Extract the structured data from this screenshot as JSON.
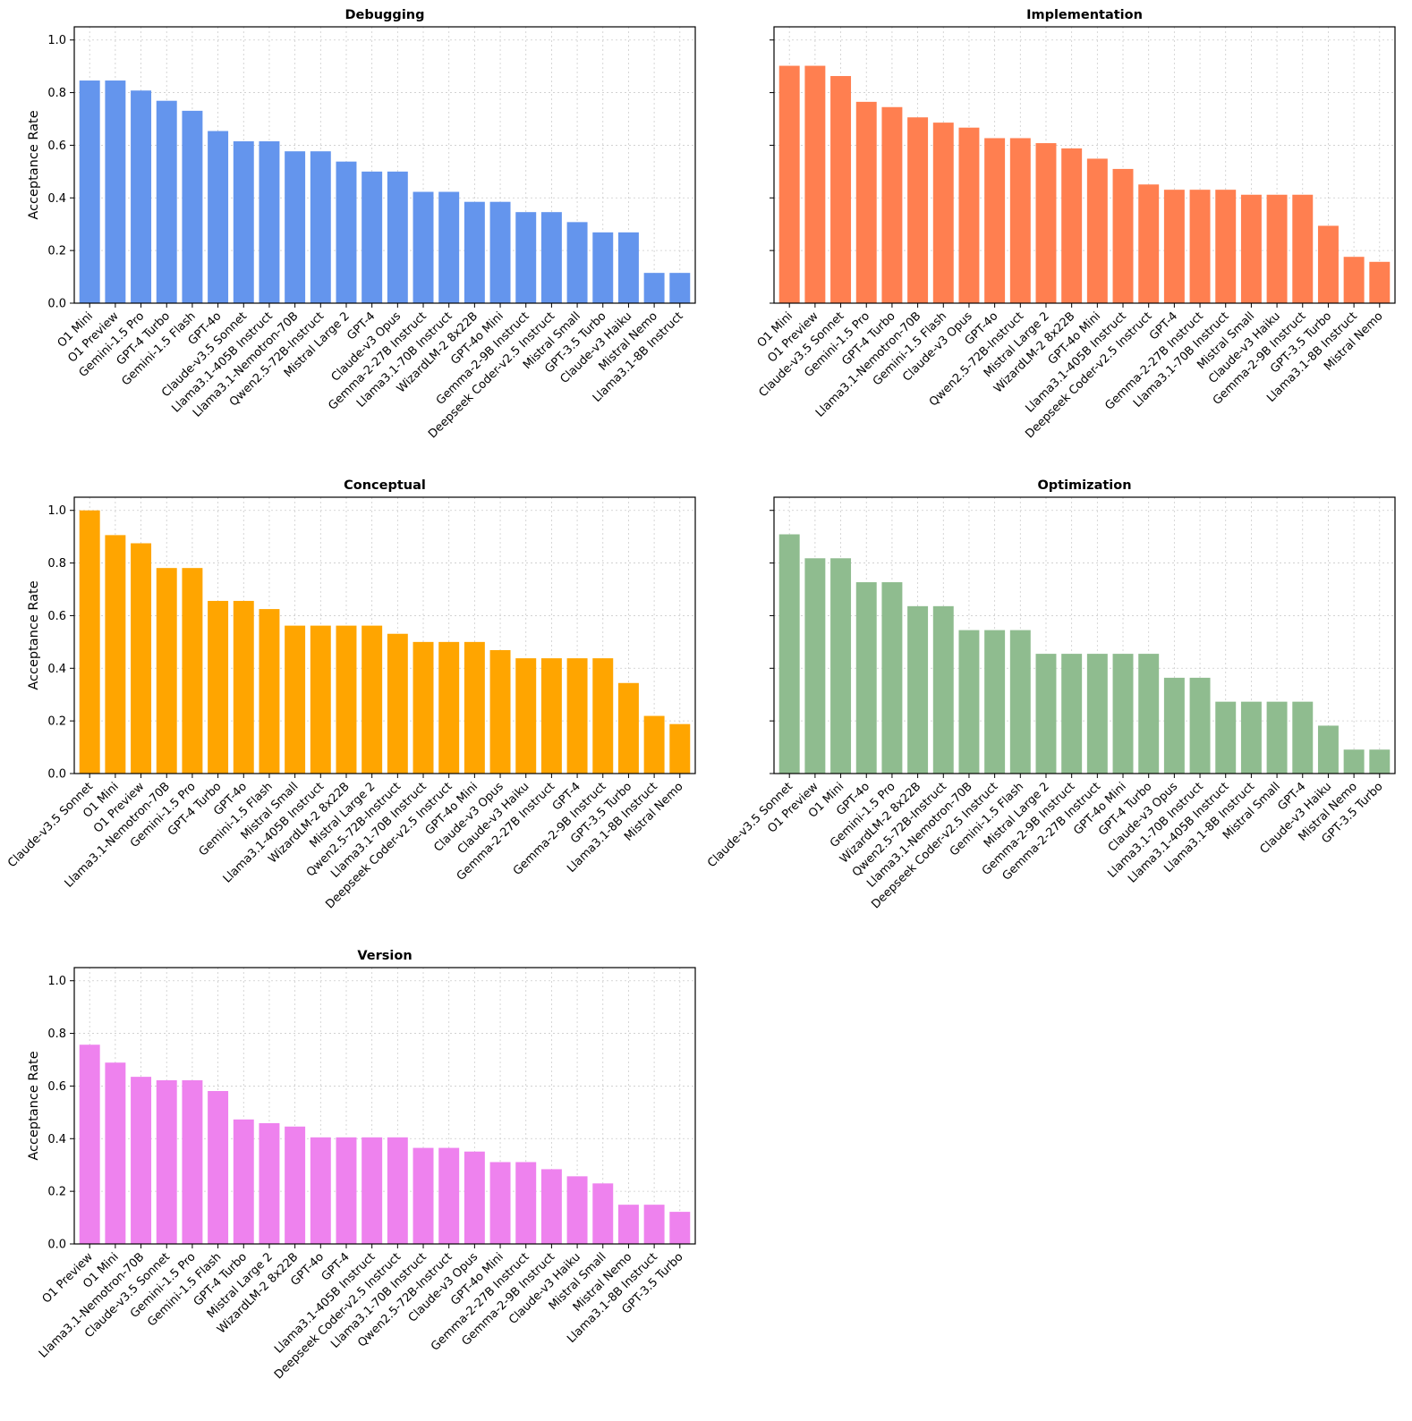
{
  "chart_data": [
    {
      "type": "bar",
      "title": "Debugging",
      "ylabel": "Acceptance Rate",
      "show_ylabel": true,
      "show_yticklabels": true,
      "ylim": [
        0,
        1.05
      ],
      "yticks": [
        "0.0",
        "0.2",
        "0.4",
        "0.6",
        "0.8",
        "1.0"
      ],
      "grid": true,
      "color": "#6495ED",
      "categories": [
        "O1 Mini",
        "O1 Preview",
        "Gemini-1.5 Pro",
        "GPT-4 Turbo",
        "Gemini-1.5 Flash",
        "GPT-4o",
        "Claude-v3.5 Sonnet",
        "Llama3.1-405B Instruct",
        "Llama3.1-Nemotron-70B",
        "Qwen2.5-72B-Instruct",
        "Mistral Large 2",
        "GPT-4",
        "Claude-v3 Opus",
        "Gemma-2-27B Instruct",
        "Llama3.1-70B Instruct",
        "WizardLM-2 8x22B",
        "GPT-4o Mini",
        "Gemma-2-9B Instruct",
        "Deepseek Coder-v2.5 Instruct",
        "Mistral Small",
        "GPT-3.5 Turbo",
        "Claude-v3 Haiku",
        "Mistral Nemo",
        "Llama3.1-8B Instruct"
      ],
      "values": [
        0.846,
        0.846,
        0.808,
        0.769,
        0.731,
        0.654,
        0.615,
        0.615,
        0.577,
        0.577,
        0.538,
        0.5,
        0.5,
        0.423,
        0.423,
        0.385,
        0.385,
        0.346,
        0.346,
        0.308,
        0.269,
        0.269,
        0.115,
        0.115
      ]
    },
    {
      "type": "bar",
      "title": "Implementation",
      "ylabel": "",
      "show_ylabel": false,
      "show_yticklabels": false,
      "ylim": [
        0,
        1.05
      ],
      "yticks": [
        "0.0",
        "0.2",
        "0.4",
        "0.6",
        "0.8",
        "1.0"
      ],
      "grid": true,
      "color": "#FF7F50",
      "categories": [
        "O1 Mini",
        "O1 Preview",
        "Claude-v3.5 Sonnet",
        "Gemini-1.5 Pro",
        "GPT-4 Turbo",
        "Llama3.1-Nemotron-70B",
        "Gemini-1.5 Flash",
        "Claude-v3 Opus",
        "GPT-4o",
        "Qwen2.5-72B-Instruct",
        "Mistral Large 2",
        "WizardLM-2 8x22B",
        "GPT-4o Mini",
        "Llama3.1-405B Instruct",
        "Deepseek Coder-v2.5 Instruct",
        "GPT-4",
        "Gemma-2-27B Instruct",
        "Llama3.1-70B Instruct",
        "Mistral Small",
        "Claude-v3 Haiku",
        "Gemma-2-9B Instruct",
        "GPT-3.5 Turbo",
        "Llama3.1-8B Instruct",
        "Mistral Nemo"
      ],
      "values": [
        0.902,
        0.902,
        0.863,
        0.765,
        0.745,
        0.706,
        0.686,
        0.667,
        0.627,
        0.627,
        0.608,
        0.588,
        0.549,
        0.51,
        0.451,
        0.431,
        0.431,
        0.431,
        0.412,
        0.412,
        0.412,
        0.294,
        0.176,
        0.157
      ]
    },
    {
      "type": "bar",
      "title": "Conceptual",
      "ylabel": "Acceptance Rate",
      "show_ylabel": true,
      "show_yticklabels": true,
      "ylim": [
        0,
        1.05
      ],
      "yticks": [
        "0.0",
        "0.2",
        "0.4",
        "0.6",
        "0.8",
        "1.0"
      ],
      "grid": true,
      "color": "#FFA500",
      "categories": [
        "Claude-v3.5 Sonnet",
        "O1 Mini",
        "O1 Preview",
        "Llama3.1-Nemotron-70B",
        "Gemini-1.5 Pro",
        "GPT-4 Turbo",
        "GPT-4o",
        "Gemini-1.5 Flash",
        "Mistral Small",
        "Llama3.1-405B Instruct",
        "WizardLM-2 8x22B",
        "Mistral Large 2",
        "Qwen2.5-72B-Instruct",
        "Llama3.1-70B Instruct",
        "Deepseek Coder-v2.5 Instruct",
        "GPT-4o Mini",
        "Claude-v3 Opus",
        "Claude-v3 Haiku",
        "Gemma-2-27B Instruct",
        "GPT-4",
        "Gemma-2-9B Instruct",
        "GPT-3.5 Turbo",
        "Llama3.1-8B Instruct",
        "Mistral Nemo"
      ],
      "values": [
        1.0,
        0.906,
        0.875,
        0.781,
        0.781,
        0.656,
        0.656,
        0.625,
        0.562,
        0.562,
        0.562,
        0.562,
        0.531,
        0.5,
        0.5,
        0.5,
        0.469,
        0.438,
        0.438,
        0.438,
        0.438,
        0.344,
        0.219,
        0.188
      ]
    },
    {
      "type": "bar",
      "title": "Optimization",
      "ylabel": "",
      "show_ylabel": false,
      "show_yticklabels": false,
      "ylim": [
        0,
        1.05
      ],
      "yticks": [
        "0.0",
        "0.2",
        "0.4",
        "0.6",
        "0.8",
        "1.0"
      ],
      "grid": true,
      "color": "#8FBC8F",
      "categories": [
        "Claude-v3.5 Sonnet",
        "O1 Preview",
        "O1 Mini",
        "GPT-4o",
        "Gemini-1.5 Pro",
        "WizardLM-2 8x22B",
        "Qwen2.5-72B-Instruct",
        "Llama3.1-Nemotron-70B",
        "Deepseek Coder-v2.5 Instruct",
        "Gemini-1.5 Flash",
        "Mistral Large 2",
        "Gemma-2-9B Instruct",
        "Gemma-2-27B Instruct",
        "GPT-4o Mini",
        "GPT-4 Turbo",
        "Claude-v3 Opus",
        "Llama3.1-70B Instruct",
        "Llama3.1-405B Instruct",
        "Llama3.1-8B Instruct",
        "Mistral Small",
        "GPT-4",
        "Claude-v3 Haiku",
        "Mistral Nemo",
        "GPT-3.5 Turbo"
      ],
      "values": [
        0.909,
        0.818,
        0.818,
        0.727,
        0.727,
        0.636,
        0.636,
        0.545,
        0.545,
        0.545,
        0.455,
        0.455,
        0.455,
        0.455,
        0.455,
        0.364,
        0.364,
        0.273,
        0.273,
        0.273,
        0.273,
        0.182,
        0.091,
        0.091
      ]
    },
    {
      "type": "bar",
      "title": "Version",
      "ylabel": "Acceptance Rate",
      "show_ylabel": true,
      "show_yticklabels": true,
      "ylim": [
        0,
        1.05
      ],
      "yticks": [
        "0.0",
        "0.2",
        "0.4",
        "0.6",
        "0.8",
        "1.0"
      ],
      "grid": true,
      "color": "#EE82EE",
      "categories": [
        "O1 Preview",
        "O1 Mini",
        "Llama3.1-Nemotron-70B",
        "Claude-v3.5 Sonnet",
        "Gemini-1.5 Pro",
        "Gemini-1.5 Flash",
        "GPT-4 Turbo",
        "Mistral Large 2",
        "WizardLM-2 8x22B",
        "GPT-4o",
        "GPT-4",
        "Llama3.1-405B Instruct",
        "Deepseek Coder-v2.5 Instruct",
        "Llama3.1-70B Instruct",
        "Qwen2.5-72B-Instruct",
        "Claude-v3 Opus",
        "GPT-4o Mini",
        "Gemma-2-27B Instruct",
        "Gemma-2-9B Instruct",
        "Claude-v3 Haiku",
        "Mistral Small",
        "Mistral Nemo",
        "Llama3.1-8B Instruct",
        "GPT-3.5 Turbo"
      ],
      "values": [
        0.757,
        0.689,
        0.635,
        0.622,
        0.622,
        0.581,
        0.473,
        0.459,
        0.446,
        0.405,
        0.405,
        0.405,
        0.405,
        0.365,
        0.365,
        0.351,
        0.311,
        0.311,
        0.284,
        0.257,
        0.23,
        0.149,
        0.149,
        0.122
      ]
    }
  ]
}
